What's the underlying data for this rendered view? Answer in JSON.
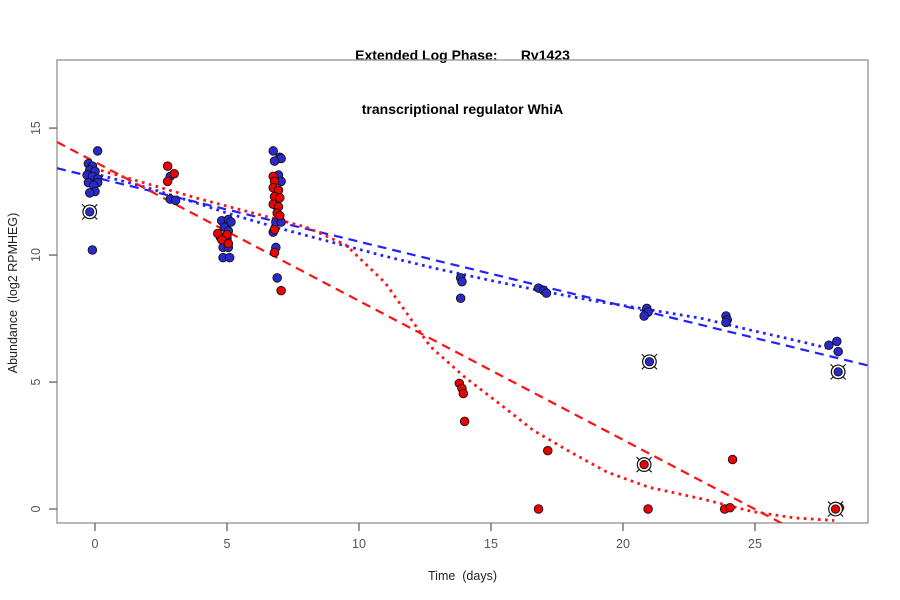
{
  "title": {
    "line1": "Extended Log Phase:      Rv1423",
    "line2": "transcriptional regulator WhiA"
  },
  "chart_data": {
    "type": "scatter",
    "title": "Extended Log Phase:      Rv1423 / transcriptional regulator WhiA",
    "xlabel": "Time  (days)",
    "ylabel": "Abundance  (log2 RPMHEG)",
    "x_ticks": [
      0,
      5,
      10,
      15,
      20,
      25
    ],
    "y_ticks": [
      0,
      5,
      10,
      15
    ],
    "xlim": [
      -1.44,
      29.28
    ],
    "ylim": [
      -0.55,
      17.68
    ],
    "grid": false,
    "legend": "none",
    "colors": {
      "blue_point": "#2A2ACC",
      "red_point": "#EE0000",
      "blue_line": "#2222FF",
      "red_line": "#FF1111",
      "point_outline": "#111111",
      "box": "#999999",
      "tick": "#555555",
      "tick_label": "#555555"
    },
    "series": [
      {
        "name": "blue-points",
        "marker": "dot",
        "color": "#2A2ACC",
        "points": [
          [
            0.1,
            14.1
          ],
          [
            -0.25,
            13.6
          ],
          [
            -0.1,
            13.5
          ],
          [
            -0.2,
            13.35
          ],
          [
            0,
            13.3
          ],
          [
            -0.3,
            13.15
          ],
          [
            -0.1,
            13.1
          ],
          [
            0.1,
            13.0
          ],
          [
            -0.25,
            12.85
          ],
          [
            0.1,
            12.85
          ],
          [
            -0.05,
            12.75
          ],
          [
            0,
            12.5
          ],
          [
            -0.2,
            12.45
          ],
          [
            -0.1,
            10.2
          ],
          [
            2.85,
            13.1
          ],
          [
            2.85,
            12.2
          ],
          [
            3.05,
            12.15
          ],
          [
            4.8,
            11.35
          ],
          [
            5.05,
            11.4
          ],
          [
            5.15,
            11.3
          ],
          [
            4.9,
            11.1
          ],
          [
            5.05,
            10.95
          ],
          [
            4.75,
            10.7
          ],
          [
            5.0,
            10.65
          ],
          [
            4.85,
            10.3
          ],
          [
            5.05,
            10.3
          ],
          [
            4.85,
            9.9
          ],
          [
            5.1,
            9.9
          ],
          [
            6.75,
            14.1
          ],
          [
            7.0,
            13.85
          ],
          [
            7.05,
            13.8
          ],
          [
            6.8,
            13.7
          ],
          [
            6.95,
            13.15
          ],
          [
            7.05,
            12.9
          ],
          [
            6.9,
            11.9
          ],
          [
            6.85,
            11.3
          ],
          [
            7.05,
            11.3
          ],
          [
            6.75,
            10.9
          ],
          [
            6.85,
            10.3
          ],
          [
            6.9,
            9.1
          ],
          [
            13.85,
            9.1
          ],
          [
            13.9,
            8.95
          ],
          [
            13.85,
            8.3
          ],
          [
            16.8,
            8.7
          ],
          [
            17.0,
            8.6
          ],
          [
            17.1,
            8.5
          ],
          [
            20.9,
            7.9
          ],
          [
            20.95,
            7.75
          ],
          [
            20.8,
            7.6
          ],
          [
            23.9,
            7.6
          ],
          [
            23.95,
            7.45
          ],
          [
            23.9,
            7.35
          ],
          [
            27.8,
            6.45
          ],
          [
            28.1,
            6.6
          ],
          [
            28.15,
            6.2
          ]
        ]
      },
      {
        "name": "blue-points-circled",
        "marker": "circle-x-dot",
        "color": "#2A2ACC",
        "points": [
          [
            -0.2,
            11.7
          ],
          [
            21.0,
            5.8
          ],
          [
            28.15,
            5.4
          ]
        ]
      },
      {
        "name": "red-points",
        "marker": "dot",
        "color": "#EE0000",
        "points": [
          [
            2.75,
            13.5
          ],
          [
            3.0,
            13.2
          ],
          [
            2.75,
            12.9
          ],
          [
            4.65,
            10.85
          ],
          [
            5.0,
            10.8
          ],
          [
            4.8,
            10.6
          ],
          [
            5.05,
            10.45
          ],
          [
            6.75,
            13.1
          ],
          [
            6.8,
            12.9
          ],
          [
            6.75,
            12.65
          ],
          [
            6.95,
            12.55
          ],
          [
            6.8,
            12.3
          ],
          [
            7.0,
            12.25
          ],
          [
            6.75,
            12.0
          ],
          [
            6.95,
            11.9
          ],
          [
            6.9,
            11.65
          ],
          [
            7.0,
            11.55
          ],
          [
            6.8,
            11.0
          ],
          [
            6.8,
            10.1
          ],
          [
            7.05,
            8.6
          ],
          [
            13.8,
            4.95
          ],
          [
            13.9,
            4.75
          ],
          [
            13.95,
            4.55
          ],
          [
            14.0,
            3.45
          ],
          [
            17.15,
            2.3
          ],
          [
            16.8,
            0.0
          ],
          [
            20.95,
            0.0
          ],
          [
            24.15,
            1.95
          ],
          [
            23.85,
            0.0
          ],
          [
            24.05,
            0.05
          ],
          [
            28.2,
            0.05
          ]
        ]
      },
      {
        "name": "red-points-circled",
        "marker": "circle-x-dot",
        "color": "#EE0000",
        "points": [
          [
            20.8,
            1.75
          ],
          [
            28.05,
            0.0
          ]
        ]
      }
    ],
    "lines": [
      {
        "name": "blue-linear-fit",
        "style": "dashed",
        "color": "#2222FF",
        "points": [
          [
            -1.44,
            13.42
          ],
          [
            29.28,
            5.65
          ]
        ]
      },
      {
        "name": "blue-spline-fit",
        "style": "dotted",
        "color": "#2222FF",
        "points": [
          [
            -0.3,
            13.3
          ],
          [
            0,
            13.2
          ],
          [
            2,
            12.65
          ],
          [
            4,
            12.0
          ],
          [
            5,
            11.65
          ],
          [
            7,
            11.05
          ],
          [
            9,
            10.5
          ],
          [
            11,
            9.95
          ],
          [
            13,
            9.45
          ],
          [
            15,
            9.0
          ],
          [
            17,
            8.57
          ],
          [
            19,
            8.18
          ],
          [
            21,
            7.85
          ],
          [
            23,
            7.5
          ],
          [
            25,
            7.0
          ],
          [
            26.5,
            6.65
          ],
          [
            27.7,
            6.35
          ]
        ]
      },
      {
        "name": "red-linear-fit",
        "style": "dashed",
        "color": "#FF1111",
        "points": [
          [
            -1.44,
            14.45
          ],
          [
            27.0,
            -1.1
          ]
        ]
      },
      {
        "name": "red-spline-fit",
        "style": "dotted",
        "color": "#FF1111",
        "points": [
          [
            -0.3,
            13.45
          ],
          [
            0,
            13.4
          ],
          [
            2,
            12.8
          ],
          [
            4,
            12.2
          ],
          [
            6,
            11.65
          ],
          [
            8,
            11.1
          ],
          [
            9.5,
            10.4
          ],
          [
            11,
            8.9
          ],
          [
            12.7,
            6.4
          ],
          [
            14,
            5.2
          ],
          [
            15.5,
            4.0
          ],
          [
            16.6,
            3.1
          ],
          [
            18,
            2.25
          ],
          [
            19.4,
            1.45
          ],
          [
            21,
            0.85
          ],
          [
            23,
            0.4
          ],
          [
            24.9,
            -0.1
          ],
          [
            26.5,
            -0.35
          ],
          [
            28,
            -0.45
          ]
        ]
      }
    ]
  }
}
